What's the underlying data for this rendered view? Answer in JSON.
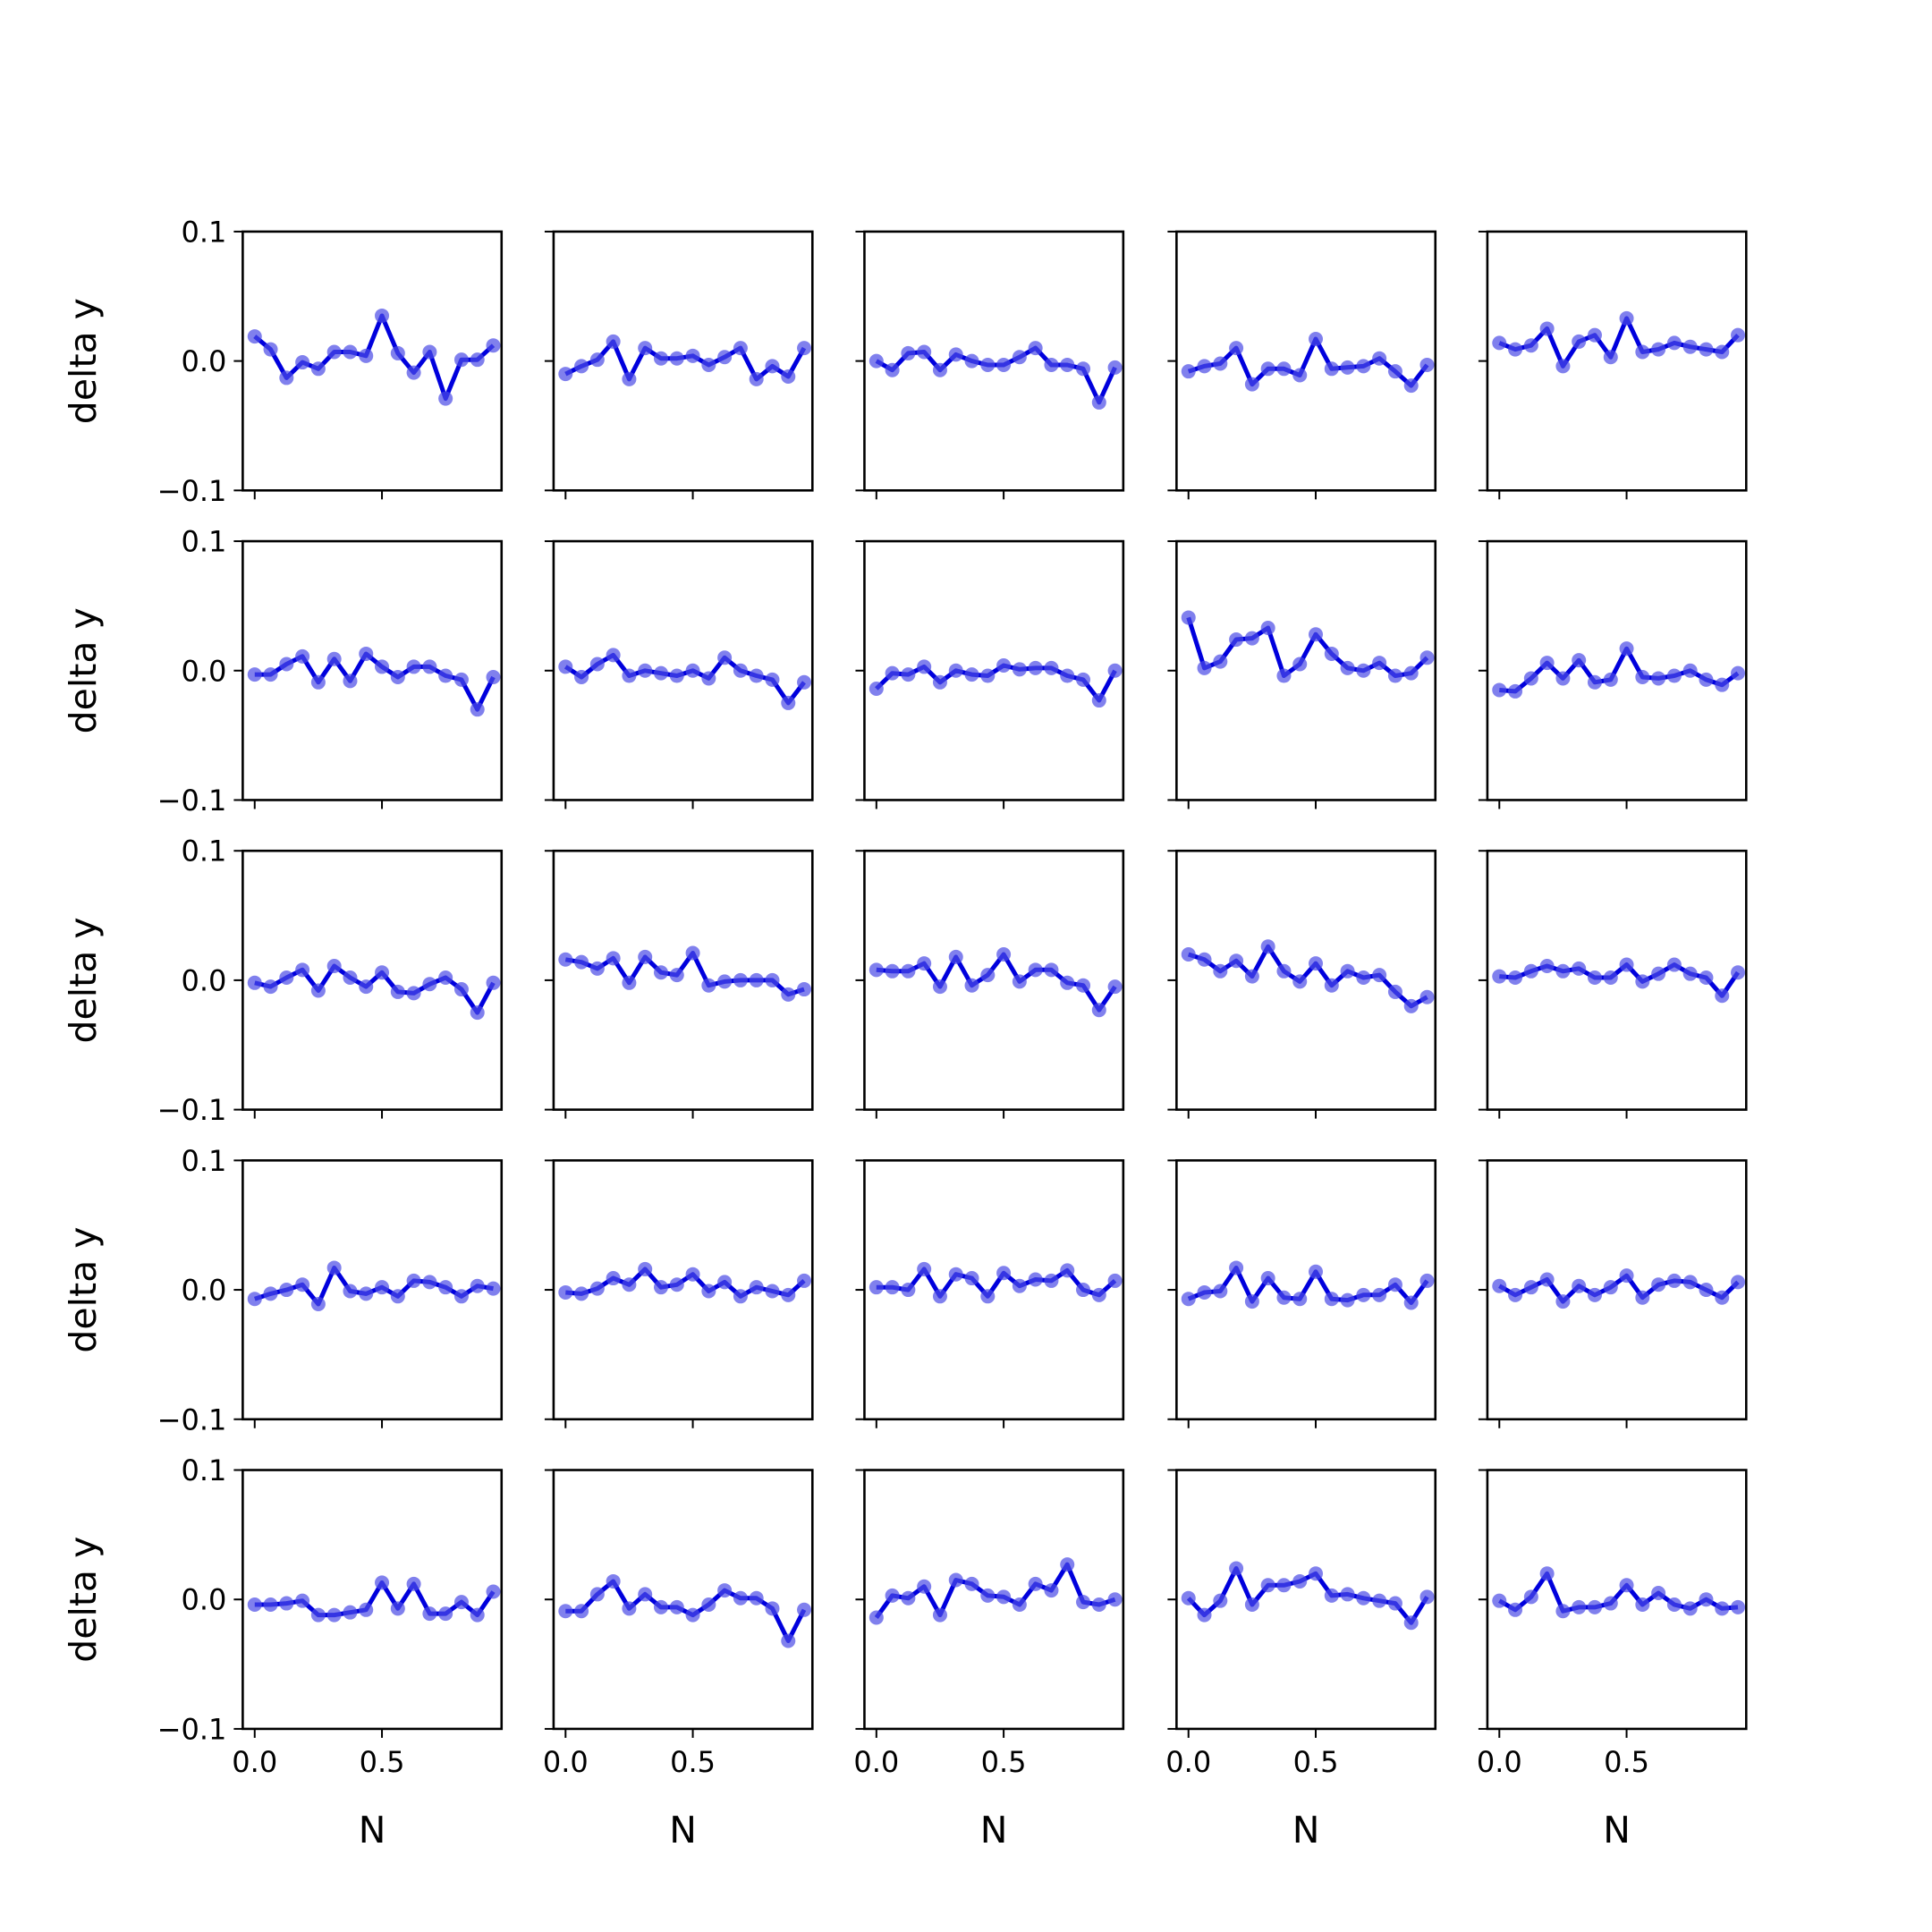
{
  "chart_data": {
    "type": "line",
    "layout": "5x5 grid of small multiples, shared x and y axes",
    "xlabel": "N",
    "ylabel": "delta y",
    "x": [
      0.0,
      0.0625,
      0.125,
      0.1875,
      0.25,
      0.3125,
      0.375,
      0.4375,
      0.5,
      0.5625,
      0.625,
      0.6875,
      0.75,
      0.8125,
      0.875,
      0.9375
    ],
    "xlim": [
      -0.047,
      0.97
    ],
    "ylim": [
      -0.1,
      0.1
    ],
    "xticks": [
      0.0,
      0.5
    ],
    "xtick_labels": [
      "0.0",
      "0.5"
    ],
    "yticks": [
      0.1,
      0.0,
      -0.1
    ],
    "ytick_labels": [
      "0.1",
      "0.0",
      "−0.1"
    ],
    "grid": false,
    "legend": "none",
    "colors": {
      "line": "#0000dd",
      "markers": "#4a4ae6"
    },
    "marker": "circle",
    "series": [
      {
        "row": 1,
        "col": 1,
        "values": [
          0.019,
          0.009,
          -0.013,
          -0.001,
          -0.006,
          0.007,
          0.007,
          0.004,
          0.035,
          0.006,
          -0.009,
          0.007,
          -0.029,
          0.001,
          0.001,
          0.012
        ]
      },
      {
        "row": 1,
        "col": 2,
        "values": [
          -0.01,
          -0.004,
          0.001,
          0.015,
          -0.014,
          0.01,
          0.002,
          0.002,
          0.004,
          -0.003,
          0.003,
          0.01,
          -0.014,
          -0.004,
          -0.012,
          0.01
        ]
      },
      {
        "row": 1,
        "col": 3,
        "values": [
          0.0,
          -0.007,
          0.006,
          0.007,
          -0.007,
          0.005,
          0.0,
          -0.003,
          -0.003,
          0.003,
          0.01,
          -0.003,
          -0.003,
          -0.006,
          -0.032,
          -0.005
        ]
      },
      {
        "row": 1,
        "col": 4,
        "values": [
          -0.008,
          -0.004,
          -0.002,
          0.01,
          -0.018,
          -0.006,
          -0.006,
          -0.011,
          0.017,
          -0.006,
          -0.005,
          -0.004,
          0.002,
          -0.008,
          -0.019,
          -0.003
        ]
      },
      {
        "row": 1,
        "col": 5,
        "values": [
          0.014,
          0.009,
          0.012,
          0.025,
          -0.004,
          0.015,
          0.02,
          0.003,
          0.033,
          0.007,
          0.009,
          0.014,
          0.011,
          0.009,
          0.007,
          0.02
        ]
      },
      {
        "row": 2,
        "col": 1,
        "values": [
          -0.003,
          -0.003,
          0.005,
          0.011,
          -0.009,
          0.009,
          -0.008,
          0.013,
          0.003,
          -0.005,
          0.003,
          0.003,
          -0.004,
          -0.007,
          -0.03,
          -0.005
        ]
      },
      {
        "row": 2,
        "col": 2,
        "values": [
          0.003,
          -0.005,
          0.005,
          0.012,
          -0.004,
          0.0,
          -0.002,
          -0.004,
          0.0,
          -0.006,
          0.01,
          0.0,
          -0.004,
          -0.007,
          -0.025,
          -0.009
        ]
      },
      {
        "row": 2,
        "col": 3,
        "values": [
          -0.014,
          -0.002,
          -0.003,
          0.003,
          -0.009,
          0.0,
          -0.003,
          -0.004,
          0.004,
          0.001,
          0.002,
          0.002,
          -0.004,
          -0.007,
          -0.023,
          0.0
        ]
      },
      {
        "row": 2,
        "col": 4,
        "values": [
          0.041,
          0.002,
          0.007,
          0.024,
          0.025,
          0.033,
          -0.004,
          0.005,
          0.028,
          0.013,
          0.002,
          0.0,
          0.006,
          -0.004,
          -0.002,
          0.01
        ]
      },
      {
        "row": 2,
        "col": 5,
        "values": [
          -0.015,
          -0.016,
          -0.006,
          0.006,
          -0.006,
          0.008,
          -0.009,
          -0.007,
          0.017,
          -0.005,
          -0.006,
          -0.004,
          0.0,
          -0.007,
          -0.011,
          -0.002
        ]
      },
      {
        "row": 3,
        "col": 1,
        "values": [
          -0.002,
          -0.005,
          0.002,
          0.008,
          -0.008,
          0.011,
          0.002,
          -0.005,
          0.006,
          -0.009,
          -0.01,
          -0.003,
          0.002,
          -0.007,
          -0.025,
          -0.002
        ]
      },
      {
        "row": 3,
        "col": 2,
        "values": [
          0.016,
          0.014,
          0.009,
          0.017,
          -0.002,
          0.018,
          0.006,
          0.004,
          0.021,
          -0.004,
          -0.001,
          0.0,
          0.0,
          0.0,
          -0.011,
          -0.007
        ]
      },
      {
        "row": 3,
        "col": 3,
        "values": [
          0.008,
          0.007,
          0.007,
          0.013,
          -0.005,
          0.018,
          -0.004,
          0.004,
          0.02,
          -0.001,
          0.008,
          0.008,
          -0.002,
          -0.004,
          -0.023,
          -0.005
        ]
      },
      {
        "row": 3,
        "col": 4,
        "values": [
          0.02,
          0.016,
          0.007,
          0.015,
          0.003,
          0.026,
          0.007,
          -0.001,
          0.013,
          -0.004,
          0.007,
          0.002,
          0.004,
          -0.009,
          -0.02,
          -0.013
        ]
      },
      {
        "row": 3,
        "col": 5,
        "values": [
          0.003,
          0.002,
          0.007,
          0.011,
          0.007,
          0.009,
          0.002,
          0.002,
          0.012,
          -0.001,
          0.005,
          0.012,
          0.005,
          0.002,
          -0.012,
          0.006
        ]
      },
      {
        "row": 4,
        "col": 1,
        "values": [
          -0.007,
          -0.003,
          0.0,
          0.004,
          -0.011,
          0.017,
          -0.001,
          -0.003,
          0.002,
          -0.005,
          0.007,
          0.006,
          0.002,
          -0.005,
          0.003,
          0.001
        ]
      },
      {
        "row": 4,
        "col": 2,
        "values": [
          -0.002,
          -0.003,
          0.001,
          0.009,
          0.004,
          0.016,
          0.002,
          0.004,
          0.012,
          -0.001,
          0.006,
          -0.005,
          0.002,
          -0.001,
          -0.004,
          0.007
        ]
      },
      {
        "row": 4,
        "col": 3,
        "values": [
          0.002,
          0.002,
          0.0,
          0.016,
          -0.005,
          0.012,
          0.009,
          -0.005,
          0.013,
          0.003,
          0.008,
          0.007,
          0.015,
          0.0,
          -0.004,
          0.007
        ]
      },
      {
        "row": 4,
        "col": 4,
        "values": [
          -0.007,
          -0.002,
          -0.001,
          0.017,
          -0.009,
          0.009,
          -0.006,
          -0.007,
          0.014,
          -0.007,
          -0.008,
          -0.004,
          -0.004,
          0.004,
          -0.01,
          0.007
        ]
      },
      {
        "row": 4,
        "col": 5,
        "values": [
          0.003,
          -0.004,
          0.002,
          0.008,
          -0.009,
          0.003,
          -0.004,
          0.002,
          0.011,
          -0.006,
          0.004,
          0.007,
          0.006,
          0.0,
          -0.006,
          0.006
        ]
      },
      {
        "row": 5,
        "col": 1,
        "values": [
          -0.004,
          -0.004,
          -0.003,
          -0.001,
          -0.012,
          -0.012,
          -0.01,
          -0.008,
          0.013,
          -0.007,
          0.012,
          -0.011,
          -0.011,
          -0.002,
          -0.012,
          0.006
        ]
      },
      {
        "row": 5,
        "col": 2,
        "values": [
          -0.009,
          -0.009,
          0.004,
          0.014,
          -0.007,
          0.004,
          -0.006,
          -0.006,
          -0.012,
          -0.004,
          0.007,
          0.001,
          0.001,
          -0.007,
          -0.032,
          -0.008
        ]
      },
      {
        "row": 5,
        "col": 3,
        "values": [
          -0.014,
          0.003,
          0.001,
          0.01,
          -0.012,
          0.015,
          0.012,
          0.003,
          0.002,
          -0.004,
          0.012,
          0.007,
          0.027,
          -0.002,
          -0.004,
          0.0
        ]
      },
      {
        "row": 5,
        "col": 4,
        "values": [
          0.001,
          -0.012,
          -0.001,
          0.024,
          -0.004,
          0.011,
          0.011,
          0.014,
          0.02,
          0.003,
          0.004,
          0.001,
          -0.001,
          -0.003,
          -0.018,
          0.002
        ]
      },
      {
        "row": 5,
        "col": 5,
        "values": [
          -0.001,
          -0.008,
          0.002,
          0.02,
          -0.009,
          -0.006,
          -0.006,
          -0.003,
          0.011,
          -0.004,
          0.005,
          -0.004,
          -0.007,
          0.0,
          -0.007,
          -0.006
        ]
      }
    ]
  }
}
